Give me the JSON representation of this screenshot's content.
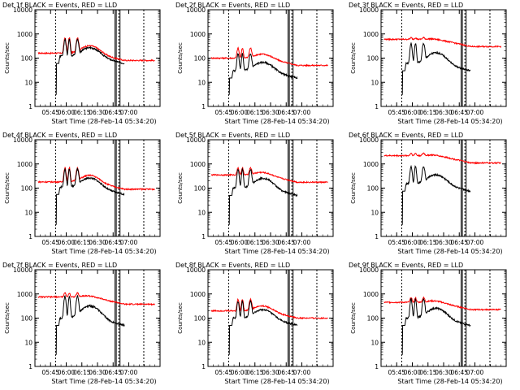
{
  "figure": {
    "ylabel": "Counts/sec",
    "xlabel_prefix": "Start Time",
    "start_time": "(28-Feb-14 05:34:20)",
    "xticks": [
      "05:45",
      "06:00",
      "06:15",
      "06:30",
      "06:45",
      "07:00"
    ],
    "yticks": [
      "1",
      "10",
      "100",
      "1000",
      "10000"
    ],
    "colors": {
      "events": "#000000",
      "lld": "#ff0000"
    }
  },
  "chart_data": [
    {
      "type": "line",
      "title": "Det 1f BLACK = Events, RED = LLD",
      "xlabel": "Start Time (28-Feb-14 05:34:20)",
      "ylabel": "Counts/sec",
      "xlim": [
        5.5,
        7.5
      ],
      "ylim": [
        1,
        10000
      ],
      "yscale": "log",
      "lld_base": 160,
      "lld_peak": 700,
      "events_base": 120,
      "events_peak": 600
    },
    {
      "type": "line",
      "title": "Det 2f BLACK = Events, RED = LLD",
      "xlabel": "Start Time (28-Feb-14 05:34:20)",
      "ylabel": "Counts/sec",
      "xlim": [
        5.5,
        7.5
      ],
      "ylim": [
        1,
        10000
      ],
      "yscale": "log",
      "lld_base": 100,
      "lld_peak": 260,
      "events_base": 30,
      "events_peak": 150
    },
    {
      "type": "line",
      "title": "Det 3f BLACK = Events, RED = LLD",
      "xlabel": "Start Time (28-Feb-14 05:34:20)",
      "ylabel": "Counts/sec",
      "xlim": [
        5.5,
        7.5
      ],
      "ylim": [
        1,
        10000
      ],
      "yscale": "log",
      "lld_base": 600,
      "lld_peak": 700,
      "events_base": 60,
      "events_peak": 400
    },
    {
      "type": "line",
      "title": "Det 4f BLACK = Events, RED = LLD",
      "xlabel": "Start Time (28-Feb-14 05:34:20)",
      "ylabel": "Counts/sec",
      "xlim": [
        5.5,
        7.5
      ],
      "ylim": [
        1,
        10000
      ],
      "yscale": "log",
      "lld_base": 180,
      "lld_peak": 700,
      "events_base": 110,
      "events_peak": 600
    },
    {
      "type": "line",
      "title": "Det 5f BLACK = Events, RED = LLD",
      "xlabel": "Start Time (28-Feb-14 05:34:20)",
      "ylabel": "Counts/sec",
      "xlim": [
        5.5,
        7.5
      ],
      "ylim": [
        1,
        10000
      ],
      "yscale": "log",
      "lld_base": 350,
      "lld_peak": 700,
      "events_base": 100,
      "events_peak": 600
    },
    {
      "type": "line",
      "title": "Det 6f BLACK = Events, RED = LLD",
      "xlabel": "Start Time (28-Feb-14 05:34:20)",
      "ylabel": "Counts/sec",
      "xlim": [
        5.5,
        7.5
      ],
      "ylim": [
        1,
        10000
      ],
      "yscale": "log",
      "lld_base": 2200,
      "lld_peak": 2800,
      "events_base": 150,
      "events_peak": 800
    },
    {
      "type": "line",
      "title": "Det 7f BLACK = Events, RED = LLD",
      "xlabel": "Start Time (28-Feb-14 05:34:20)",
      "ylabel": "Counts/sec",
      "xlim": [
        5.5,
        7.5
      ],
      "ylim": [
        1,
        10000
      ],
      "yscale": "log",
      "lld_base": 750,
      "lld_peak": 1100,
      "events_base": 100,
      "events_peak": 800
    },
    {
      "type": "line",
      "title": "Det 8f BLACK = Events, RED = LLD",
      "xlabel": "Start Time (28-Feb-14 05:34:20)",
      "ylabel": "Counts/sec",
      "xlim": [
        5.5,
        7.5
      ],
      "ylim": [
        1,
        10000
      ],
      "yscale": "log",
      "lld_base": 200,
      "lld_peak": 600,
      "events_base": 100,
      "events_peak": 500
    },
    {
      "type": "line",
      "title": "Det 9f BLACK = Events, RED = LLD",
      "xlabel": "Start Time (28-Feb-14 05:34:20)",
      "ylabel": "Counts/sec",
      "xlim": [
        5.5,
        7.5
      ],
      "ylim": [
        1,
        10000
      ],
      "yscale": "log",
      "lld_base": 450,
      "lld_peak": 700,
      "events_base": 100,
      "events_peak": 600
    }
  ]
}
